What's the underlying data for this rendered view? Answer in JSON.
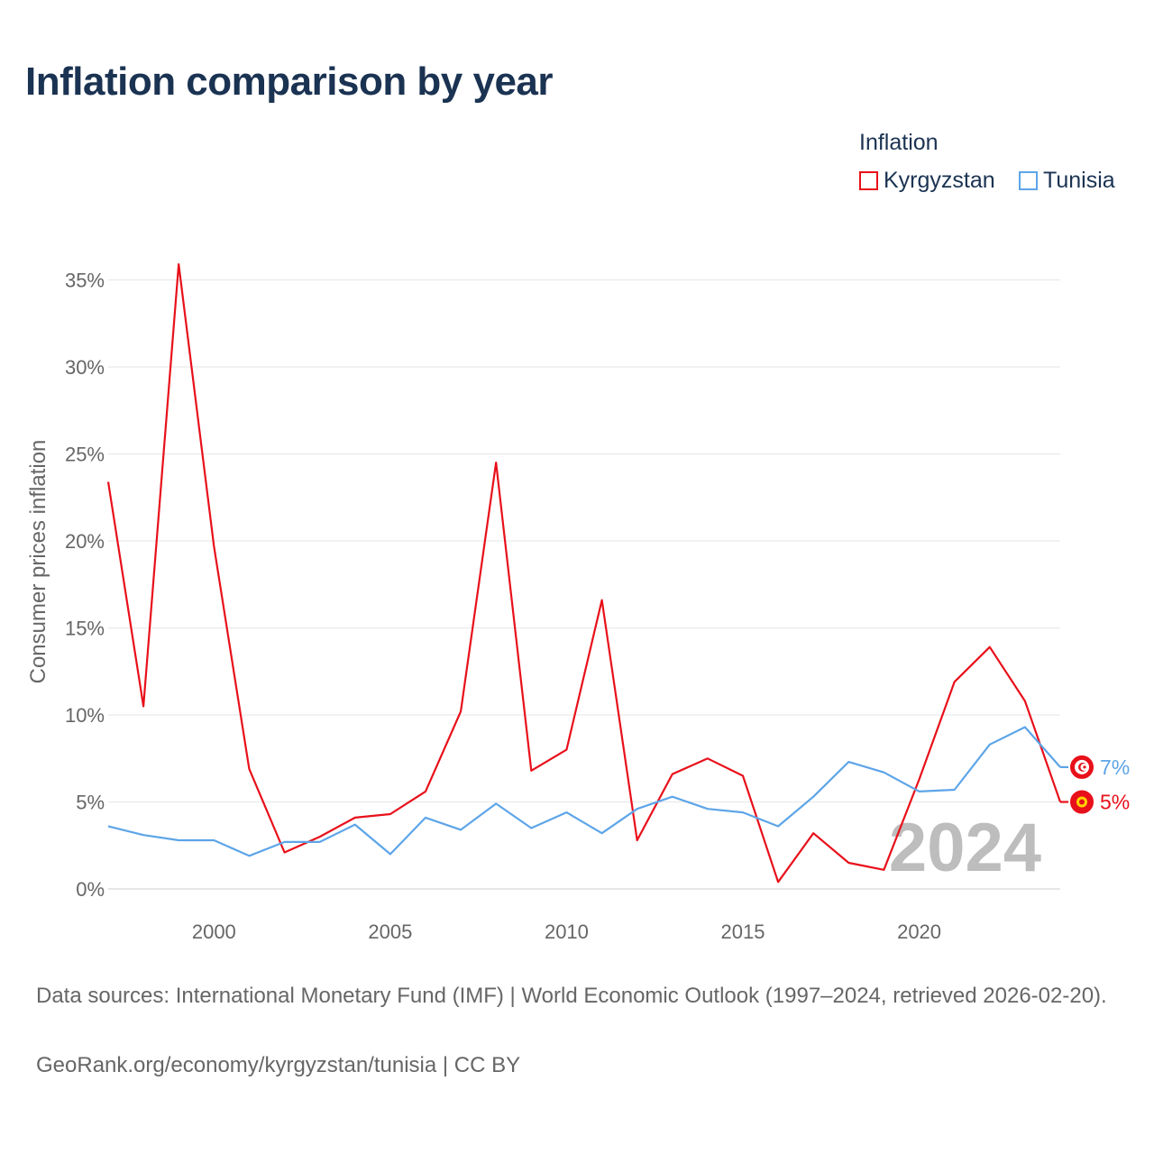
{
  "title": "Inflation comparison by year",
  "legend": {
    "title": "Inflation",
    "items": [
      {
        "name": "Kyrgyzstan",
        "color": "#e8101a"
      },
      {
        "name": "Tunisia",
        "color": "#5da5e8"
      }
    ]
  },
  "chart_data": {
    "type": "line",
    "title": "Inflation comparison by year",
    "xlabel": "",
    "ylabel": "Consumer prices inflation",
    "xlim": [
      1997,
      2024
    ],
    "ylim": [
      0,
      36
    ],
    "x_ticks": [
      {
        "value": 2000,
        "label": "2000"
      },
      {
        "value": 2005,
        "label": "2005"
      },
      {
        "value": 2010,
        "label": "2010"
      },
      {
        "value": 2015,
        "label": "2015"
      },
      {
        "value": 2020,
        "label": "2020"
      }
    ],
    "y_ticks": [
      {
        "value": 0,
        "label": "0%"
      },
      {
        "value": 5,
        "label": "5%"
      },
      {
        "value": 10,
        "label": "10%"
      },
      {
        "value": 15,
        "label": "15%"
      },
      {
        "value": 20,
        "label": "20%"
      },
      {
        "value": 25,
        "label": "25%"
      },
      {
        "value": 30,
        "label": "30%"
      },
      {
        "value": 35,
        "label": "35%"
      }
    ],
    "grid": true,
    "x": [
      1997,
      1998,
      1999,
      2000,
      2001,
      2002,
      2003,
      2004,
      2005,
      2006,
      2007,
      2008,
      2009,
      2010,
      2011,
      2012,
      2013,
      2014,
      2015,
      2016,
      2017,
      2018,
      2019,
      2020,
      2021,
      2022,
      2023,
      2024
    ],
    "series": [
      {
        "name": "Kyrgyzstan",
        "color": "#e8101a",
        "end_label": "5%",
        "values": [
          23.4,
          10.5,
          35.9,
          19.7,
          6.9,
          2.1,
          3.0,
          4.1,
          4.3,
          5.6,
          10.2,
          24.5,
          6.8,
          8.0,
          16.6,
          2.8,
          6.6,
          7.5,
          6.5,
          0.4,
          3.2,
          1.5,
          1.1,
          6.3,
          11.9,
          13.9,
          10.8,
          5.0
        ]
      },
      {
        "name": "Tunisia",
        "color": "#5da5e8",
        "end_label": "7%",
        "values": [
          3.6,
          3.1,
          2.8,
          2.8,
          1.9,
          2.7,
          2.7,
          3.7,
          2.0,
          4.1,
          3.4,
          4.9,
          3.5,
          4.4,
          3.2,
          4.6,
          5.3,
          4.6,
          4.4,
          3.6,
          5.3,
          7.3,
          6.7,
          5.6,
          5.7,
          8.3,
          9.3,
          7.0
        ]
      }
    ],
    "watermark_year": "2024"
  },
  "footer": {
    "sources": "Data sources: International Monetary Fund (IMF) | World Economic Outlook (1997–2024, retrieved 2026-02-20).",
    "credit": "GeoRank.org/economy/kyrgyzstan/tunisia | CC BY"
  }
}
